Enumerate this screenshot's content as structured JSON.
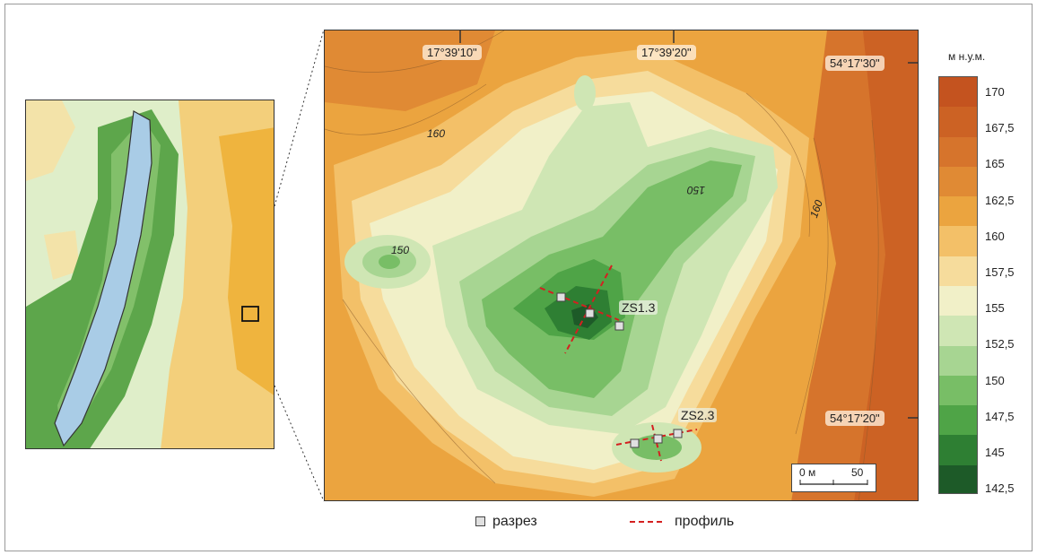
{
  "coords": {
    "top_left": "17°39'10\"",
    "top_right": "17°39'20\"",
    "lat_top": "54°17'30\"",
    "lat_bottom": "54°17'20\""
  },
  "contour_labels": [
    "160",
    "150",
    "150",
    "160"
  ],
  "sites": {
    "zs1": "ZS1.3",
    "zs2": "ZS2.3"
  },
  "scale": {
    "zero": "0 м",
    "end": "50"
  },
  "legend": {
    "title": "м н.у.м.",
    "values": [
      "170",
      "167,5",
      "165",
      "162,5",
      "160",
      "157,5",
      "155",
      "152,5",
      "150",
      "147,5",
      "145",
      "142,5"
    ],
    "colors": [
      "#c4531f",
      "#cc6224",
      "#d6742c",
      "#e08a34",
      "#eba43f",
      "#f3c068",
      "#f6dc9c",
      "#f1f0c8",
      "#cfe6b4",
      "#a7d592",
      "#78be66",
      "#4fa447",
      "#2e7f33",
      "#1d5a28"
    ]
  },
  "bottom_legend": {
    "section": "разрез",
    "profile": "профиль"
  },
  "colors": {
    "lake": "#a9cce6",
    "profile": "#d42020",
    "border": "#333333"
  }
}
